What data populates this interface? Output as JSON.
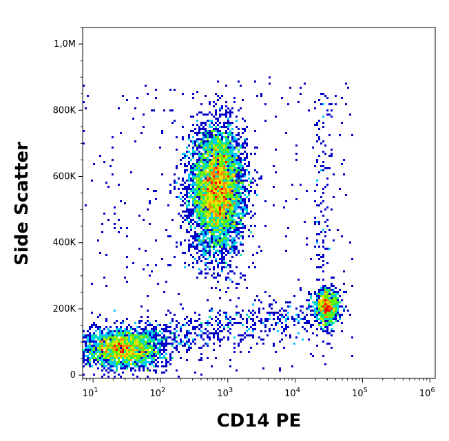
{
  "chart_data": {
    "type": "scatter",
    "title": "",
    "xlabel": "CD14 PE",
    "ylabel": "Side Scatter",
    "x_scale": "log",
    "xlim": [
      7,
      1200000
    ],
    "ylim": [
      -10000,
      1050000
    ],
    "grid": false,
    "x_ticks": [
      {
        "value": 10,
        "base": "10",
        "exp": "1"
      },
      {
        "value": 100,
        "base": "10",
        "exp": "2"
      },
      {
        "value": 1000,
        "base": "10",
        "exp": "3"
      },
      {
        "value": 10000,
        "base": "10",
        "exp": "4"
      },
      {
        "value": 100000,
        "base": "10",
        "exp": "5"
      },
      {
        "value": 1000000,
        "base": "10",
        "exp": "6"
      }
    ],
    "y_ticks": [
      {
        "value": 0,
        "label": "0"
      },
      {
        "value": 200000,
        "label": "200K"
      },
      {
        "value": 400000,
        "label": "400K"
      },
      {
        "value": 600000,
        "label": "600K"
      },
      {
        "value": 800000,
        "label": "800K"
      },
      {
        "value": 1000000,
        "label": "1,0M"
      }
    ],
    "populations": [
      {
        "center_x": 700,
        "center_y": 560000,
        "spread_log_x": 0.2,
        "spread_y": 95000,
        "events": 5200
      },
      {
        "center_x": 28,
        "center_y": 80000,
        "spread_log_x": 0.3,
        "spread_y": 30000,
        "events": 2200
      },
      {
        "center_x": 30000,
        "center_y": 205000,
        "spread_log_x": 0.09,
        "spread_y": 28000,
        "events": 800
      }
    ],
    "color_scale": [
      "#0000c8",
      "#0064ff",
      "#00c8ff",
      "#00e6a0",
      "#64f000",
      "#e6e600",
      "#ff8c00",
      "#ff0000"
    ]
  }
}
